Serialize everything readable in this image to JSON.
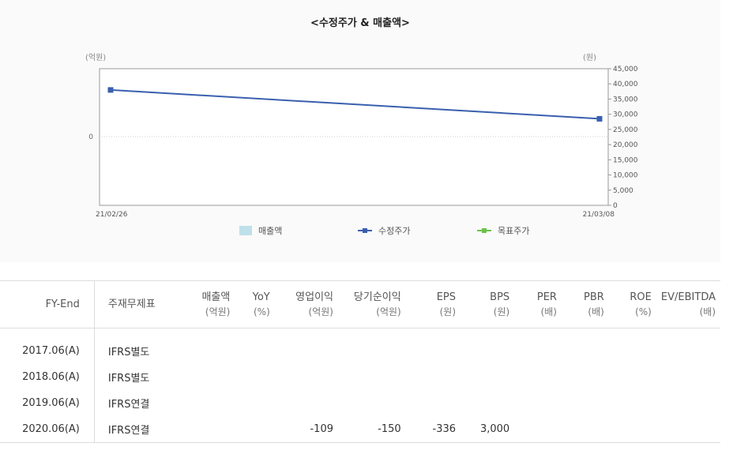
{
  "chart": {
    "title": "<수정주가 & 매출액>",
    "left_unit": "(억원)",
    "right_unit": "(원)",
    "x_tick_labels": [
      "21/02/26",
      "21/03/08"
    ],
    "left_tick_labels": [
      "0"
    ],
    "right_tick_labels": [
      "45,000",
      "40,000",
      "35,000",
      "30,000",
      "25,000",
      "20,000",
      "15,000",
      "10,000",
      "5,000",
      "0"
    ],
    "legend": [
      {
        "label": "매출액",
        "color": "#bfe0ea"
      },
      {
        "label": "수정주가",
        "color": "#3a5fae"
      },
      {
        "label": "목표주가",
        "color": "#6cc24a"
      }
    ]
  },
  "chart_data": {
    "type": "line",
    "x": [
      "21/02/26",
      "21/03/08"
    ],
    "series": [
      {
        "name": "수정주가",
        "values": [
          38000,
          28500
        ]
      }
    ],
    "y2lim": [
      0,
      45000
    ],
    "grid": false,
    "legend_position": "bottom"
  },
  "table": {
    "headers": [
      {
        "main": "FY-End",
        "sub": ""
      },
      {
        "main": "주재무제표",
        "sub": ""
      },
      {
        "main": "매출액",
        "sub": "(억원)"
      },
      {
        "main": "YoY",
        "sub": "(%)"
      },
      {
        "main": "영업이익",
        "sub": "(억원)"
      },
      {
        "main": "당기순이익",
        "sub": "(억원)"
      },
      {
        "main": "EPS",
        "sub": "(원)"
      },
      {
        "main": "BPS",
        "sub": "(원)"
      },
      {
        "main": "PER",
        "sub": "(배)"
      },
      {
        "main": "PBR",
        "sub": "(배)"
      },
      {
        "main": "ROE",
        "sub": "(%)"
      },
      {
        "main": "EV/EBITDA",
        "sub": "(배)"
      }
    ],
    "rows": [
      [
        "2017.06(A)",
        "IFRS별도",
        "",
        "",
        "",
        "",
        "",
        "",
        "",
        "",
        "",
        ""
      ],
      [
        "2018.06(A)",
        "IFRS별도",
        "",
        "",
        "",
        "",
        "",
        "",
        "",
        "",
        "",
        ""
      ],
      [
        "2019.06(A)",
        "IFRS연결",
        "",
        "",
        "",
        "",
        "",
        "",
        "",
        "",
        "",
        ""
      ],
      [
        "2020.06(A)",
        "IFRS연결",
        "",
        "",
        "-109",
        "-150",
        "-336",
        "3,000",
        "",
        "",
        "",
        ""
      ]
    ]
  }
}
